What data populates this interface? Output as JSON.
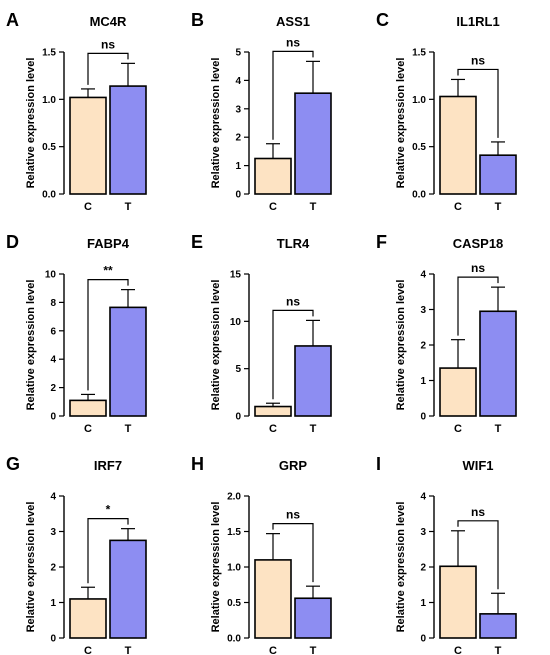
{
  "chart_data": [
    {
      "panel": "A",
      "type": "bar",
      "title": "MC4R",
      "ylabel": "Relative expression level",
      "categories": [
        "C",
        "T"
      ],
      "values": [
        1.02,
        1.14
      ],
      "errors": [
        0.09,
        0.24
      ],
      "ylim": [
        0,
        1.5
      ],
      "yticks": [
        "0.0",
        "0.5",
        "1.0",
        "1.5"
      ],
      "significance": "ns",
      "colors": [
        "#fde3c3",
        "#8d8df2"
      ]
    },
    {
      "panel": "B",
      "type": "bar",
      "title": "ASS1",
      "ylabel": "Relative expression level",
      "categories": [
        "C",
        "T"
      ],
      "values": [
        1.25,
        3.55
      ],
      "errors": [
        0.52,
        1.12
      ],
      "ylim": [
        0,
        5
      ],
      "yticks": [
        "0",
        "1",
        "2",
        "3",
        "4",
        "5"
      ],
      "significance": "ns",
      "colors": [
        "#fde3c3",
        "#8d8df2"
      ]
    },
    {
      "panel": "C",
      "type": "bar",
      "title": "IL1RL1",
      "ylabel": "Relative expression level",
      "categories": [
        "C",
        "T"
      ],
      "values": [
        1.03,
        0.41
      ],
      "errors": [
        0.18,
        0.14
      ],
      "ylim": [
        0,
        1.5
      ],
      "yticks": [
        "0.0",
        "0.5",
        "1.0",
        "1.5"
      ],
      "significance": "ns",
      "colors": [
        "#fde3c3",
        "#8d8df2"
      ]
    },
    {
      "panel": "D",
      "type": "bar",
      "title": "FABP4",
      "ylabel": "Relative expression level",
      "categories": [
        "C",
        "T"
      ],
      "values": [
        1.1,
        7.65
      ],
      "errors": [
        0.42,
        1.25
      ],
      "ylim": [
        0,
        10
      ],
      "yticks": [
        "0",
        "2",
        "4",
        "6",
        "8",
        "10"
      ],
      "significance": "**",
      "colors": [
        "#fde3c3",
        "#8d8df2"
      ]
    },
    {
      "panel": "E",
      "type": "bar",
      "title": "TLR4",
      "ylabel": "Relative expression level",
      "categories": [
        "C",
        "T"
      ],
      "values": [
        1.0,
        7.4
      ],
      "errors": [
        0.35,
        2.7
      ],
      "ylim": [
        0,
        15
      ],
      "yticks": [
        "0",
        "5",
        "10",
        "15"
      ],
      "significance": "ns",
      "colors": [
        "#fde3c3",
        "#8d8df2"
      ]
    },
    {
      "panel": "F",
      "type": "bar",
      "title": "CASP18",
      "ylabel": "Relative expression level",
      "categories": [
        "C",
        "T"
      ],
      "values": [
        1.35,
        2.95
      ],
      "errors": [
        0.8,
        0.68
      ],
      "ylim": [
        0,
        4
      ],
      "yticks": [
        "0",
        "1",
        "2",
        "3",
        "4"
      ],
      "significance": "ns",
      "colors": [
        "#fde3c3",
        "#8d8df2"
      ]
    },
    {
      "panel": "G",
      "type": "bar",
      "title": "IRF7",
      "ylabel": "Relative expression level",
      "categories": [
        "C",
        "T"
      ],
      "values": [
        1.1,
        2.75
      ],
      "errors": [
        0.33,
        0.33
      ],
      "ylim": [
        0,
        4
      ],
      "yticks": [
        "0",
        "1",
        "2",
        "3",
        "4"
      ],
      "significance": "*",
      "colors": [
        "#fde3c3",
        "#8d8df2"
      ]
    },
    {
      "panel": "H",
      "type": "bar",
      "title": "GRP",
      "ylabel": "Relative expression level",
      "categories": [
        "C",
        "T"
      ],
      "values": [
        1.1,
        0.56
      ],
      "errors": [
        0.37,
        0.17
      ],
      "ylim": [
        0,
        2.0
      ],
      "yticks": [
        "0.0",
        "0.5",
        "1.0",
        "1.5",
        "2.0"
      ],
      "significance": "ns",
      "colors": [
        "#fde3c3",
        "#8d8df2"
      ]
    },
    {
      "panel": "I",
      "type": "bar",
      "title": "WIF1",
      "ylabel": "Relative expression level",
      "categories": [
        "C",
        "T"
      ],
      "values": [
        2.02,
        0.68
      ],
      "errors": [
        1.0,
        0.58
      ],
      "ylim": [
        0,
        4
      ],
      "yticks": [
        "0",
        "1",
        "2",
        "3",
        "4"
      ],
      "significance": "ns",
      "colors": [
        "#fde3c3",
        "#8d8df2"
      ]
    }
  ]
}
